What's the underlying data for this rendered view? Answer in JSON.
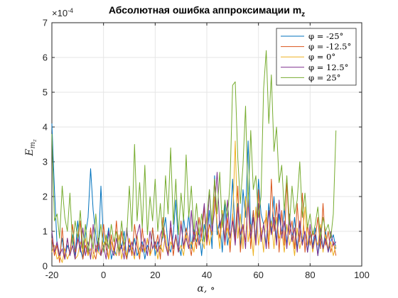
{
  "chart_data": {
    "type": "line",
    "title": "Абсолютная ошибка аппроксимации m",
    "title_subscript": "z",
    "xlabel": "α, ∘",
    "ylabel": "E",
    "ylabel_subscript": "m",
    "ylabel_subsubscript": "z",
    "y_exponent_label": "×10",
    "y_exponent_power": "-4",
    "xlim": [
      -20,
      100
    ],
    "ylim": [
      0,
      7
    ],
    "xticks": [
      -20,
      0,
      20,
      40,
      60,
      80,
      100
    ],
    "yticks": [
      0,
      1,
      2,
      3,
      4,
      5,
      6,
      7
    ],
    "grid": true,
    "legend_position": "top-right",
    "x": [
      -20,
      -19,
      -18,
      -17,
      -16,
      -15,
      -14,
      -13,
      -12,
      -11,
      -10,
      -9,
      -8,
      -7,
      -6,
      -5,
      -4,
      -3,
      -2,
      -1,
      0,
      1,
      2,
      3,
      4,
      5,
      6,
      7,
      8,
      9,
      10,
      11,
      12,
      13,
      14,
      15,
      16,
      17,
      18,
      19,
      20,
      21,
      22,
      23,
      24,
      25,
      26,
      27,
      28,
      29,
      30,
      31,
      32,
      33,
      34,
      35,
      36,
      37,
      38,
      39,
      40,
      41,
      42,
      43,
      44,
      45,
      46,
      47,
      48,
      49,
      50,
      51,
      52,
      53,
      54,
      55,
      56,
      57,
      58,
      59,
      60,
      61,
      62,
      63,
      64,
      65,
      66,
      67,
      68,
      69,
      70,
      71,
      72,
      73,
      74,
      75,
      76,
      77,
      78,
      79,
      80,
      81,
      82,
      83,
      84,
      85,
      86,
      87,
      88,
      89,
      90
    ],
    "series": [
      {
        "name": "φ = -25°",
        "color": "#0072BD",
        "values": [
          4.1,
          2.2,
          0.6,
          0.3,
          0.8,
          0.2,
          0.6,
          0.4,
          0.9,
          0.3,
          1.3,
          0.5,
          0.2,
          0.9,
          1.4,
          2.8,
          1.6,
          0.9,
          0.4,
          2.3,
          0.7,
          0.6,
          1.1,
          0.2,
          0.5,
          0.3,
          0.9,
          0.5,
          1.0,
          0.2,
          0.6,
          0.4,
          0.8,
          0.3,
          0.5,
          0.7,
          0.2,
          0.6,
          0.4,
          1.1,
          0.3,
          0.7,
          0.5,
          0.9,
          1.4,
          0.6,
          0.4,
          0.9,
          1.9,
          0.6,
          0.3,
          1.4,
          0.8,
          1.5,
          0.5,
          1.1,
          0.7,
          1.0,
          0.3,
          1.2,
          0.8,
          1.6,
          0.5,
          2.6,
          0.9,
          1.3,
          0.4,
          1.8,
          0.6,
          1.1,
          2.5,
          0.8,
          1.8,
          0.5,
          2.2,
          1.4,
          3.6,
          1.0,
          1.6,
          0.7,
          2.5,
          1.5,
          1.2,
          0.6,
          1.8,
          1.0,
          2.0,
          0.7,
          1.5,
          0.9,
          1.7,
          0.6,
          1.3,
          0.8,
          1.4,
          0.5,
          1.2,
          0.7,
          1.0,
          0.4,
          0.9,
          0.6,
          1.1,
          0.3,
          0.8,
          0.5,
          1.0,
          0.4,
          0.7,
          0.9,
          0.5
        ]
      },
      {
        "name": "φ = -12.5°",
        "color": "#D95319",
        "values": [
          0.8,
          0.3,
          0.6,
          0.1,
          1.1,
          0.2,
          0.8,
          0.3,
          1.2,
          0.4,
          0.7,
          1.3,
          0.2,
          0.6,
          0.3,
          1.1,
          0.4,
          0.2,
          0.7,
          0.3,
          1.2,
          0.5,
          0.2,
          0.9,
          0.4,
          1.3,
          0.3,
          1.0,
          0.5,
          0.2,
          0.8,
          0.3,
          1.2,
          0.6,
          0.2,
          1.1,
          0.4,
          0.8,
          0.3,
          1.1,
          0.5,
          0.9,
          0.2,
          1.4,
          0.6,
          0.4,
          1.1,
          0.3,
          0.9,
          0.4,
          1.3,
          0.5,
          1.1,
          0.7,
          0.3,
          1.0,
          0.5,
          1.4,
          0.8,
          1.7,
          0.6,
          1.2,
          0.9,
          2.5,
          1.2,
          0.8,
          1.6,
          0.6,
          1.4,
          0.4,
          1.5,
          0.7,
          2.3,
          0.4,
          1.2,
          0.7,
          1.9,
          0.5,
          1.6,
          0.6,
          2.2,
          0.8,
          1.2,
          1.4,
          0.5,
          2.5,
          1.0,
          1.8,
          0.4,
          1.6,
          0.6,
          2.4,
          0.9,
          1.3,
          0.5,
          1.8,
          0.7,
          2.1,
          0.4,
          1.2,
          0.6,
          1.0,
          0.8,
          1.4,
          0.5,
          1.8,
          0.6,
          1.0,
          0.4,
          0.7,
          0.3
        ]
      },
      {
        "name": "φ = 0°",
        "color": "#EDB120",
        "values": [
          0.4,
          0.6,
          0.2,
          0.3,
          0.1,
          0.5,
          0.2,
          0.4,
          0.6,
          0.2,
          0.3,
          0.7,
          0.4,
          0.8,
          0.3,
          0.5,
          0.2,
          0.6,
          0.4,
          0.3,
          0.6,
          0.8,
          0.2,
          0.7,
          0.4,
          0.3,
          0.9,
          0.2,
          0.6,
          0.3,
          0.8,
          0.5,
          0.2,
          0.9,
          0.3,
          0.6,
          0.4,
          0.8,
          0.3,
          0.5,
          0.7,
          0.2,
          0.6,
          0.4,
          0.9,
          0.3,
          0.7,
          0.5,
          0.8,
          0.4,
          0.6,
          0.3,
          0.9,
          0.5,
          0.7,
          0.4,
          1.0,
          0.6,
          0.8,
          0.5,
          1.5,
          0.6,
          1.0,
          2.0,
          1.2,
          0.5,
          1.6,
          0.8,
          1.1,
          0.6,
          1.3,
          3.6,
          0.8,
          1.5,
          0.5,
          2.0,
          0.7,
          1.2,
          0.3,
          1.7,
          0.6,
          1.1,
          0.4,
          1.6,
          0.7,
          1.3,
          0.5,
          1.4,
          0.8,
          1.0,
          0.4,
          1.2,
          0.6,
          0.9,
          0.3,
          1.1,
          0.5,
          0.8,
          1.7,
          0.6,
          1.0,
          0.4,
          0.8,
          0.6,
          1.2,
          0.4,
          0.9,
          0.5,
          0.7,
          0.3,
          0.6
        ]
      },
      {
        "name": "φ = 12.5°",
        "color": "#7E2F8E",
        "values": [
          1.0,
          0.4,
          0.7,
          0.3,
          0.5,
          0.2,
          0.8,
          0.3,
          0.6,
          0.2,
          0.9,
          0.4,
          1.1,
          0.3,
          0.7,
          0.2,
          1.2,
          0.4,
          0.8,
          0.3,
          0.6,
          0.2,
          1.0,
          0.5,
          0.3,
          0.8,
          0.4,
          0.6,
          0.2,
          1.1,
          0.4,
          0.7,
          0.3,
          0.9,
          1.2,
          0.4,
          0.8,
          0.3,
          1.0,
          0.5,
          0.7,
          0.4,
          0.9,
          1.1,
          0.6,
          0.3,
          1.3,
          0.5,
          0.9,
          0.4,
          1.2,
          0.6,
          0.8,
          0.5,
          1.6,
          0.7,
          1.3,
          0.6,
          1.1,
          1.8,
          0.7,
          2.2,
          1.0,
          1.6,
          2.7,
          1.1,
          1.5,
          0.7,
          1.9,
          0.8,
          1.3,
          0.6,
          1.7,
          0.9,
          1.2,
          0.5,
          2.1,
          0.8,
          1.4,
          0.6,
          1.8,
          0.7,
          1.2,
          0.5,
          1.6,
          0.9,
          1.4,
          0.6,
          1.9,
          0.8,
          1.3,
          0.5,
          1.5,
          0.7,
          1.1,
          0.4,
          1.3,
          0.6,
          1.0,
          0.4,
          1.2,
          0.5,
          0.9,
          0.3,
          1.1,
          0.5,
          0.8,
          0.4,
          1.0,
          0.6,
          0.7
        ]
      },
      {
        "name": "φ = 25°",
        "color": "#77AC30",
        "values": [
          3.8,
          1.3,
          1.5,
          0.8,
          2.3,
          1.4,
          1.0,
          2.1,
          0.6,
          1.3,
          0.8,
          1.6,
          0.5,
          1.2,
          0.4,
          0.9,
          0.5,
          1.5,
          0.6,
          1.2,
          0.4,
          0.9,
          0.5,
          1.2,
          0.7,
          1.0,
          0.4,
          1.3,
          0.6,
          0.9,
          2.3,
          1.0,
          3.5,
          1.3,
          2.4,
          1.1,
          2.9,
          0.9,
          2.0,
          1.3,
          2.5,
          1.0,
          1.8,
          0.8,
          2.6,
          1.5,
          3.4,
          1.2,
          2.5,
          0.9,
          2.1,
          1.3,
          3.2,
          1.4,
          2.3,
          1.0,
          1.8,
          0.9,
          1.5,
          0.7,
          1.4,
          2.2,
          1.2,
          2.5,
          1.5,
          2.7,
          1.1,
          1.9,
          1.4,
          2.4,
          5.2,
          5.3,
          3.1,
          1.8,
          2.9,
          4.6,
          1.7,
          3.9,
          2.2,
          2.6,
          1.4,
          2.0,
          5.1,
          6.2,
          4.1,
          5.5,
          3.3,
          4.0,
          2.4,
          2.9,
          1.6,
          2.6,
          1.2,
          2.3,
          1.5,
          1.9,
          3.0,
          1.4,
          2.1,
          1.1,
          1.5,
          0.9,
          1.2,
          1.7,
          0.8,
          1.4,
          1.0,
          1.2,
          0.8,
          1.5,
          3.9
        ]
      }
    ]
  }
}
